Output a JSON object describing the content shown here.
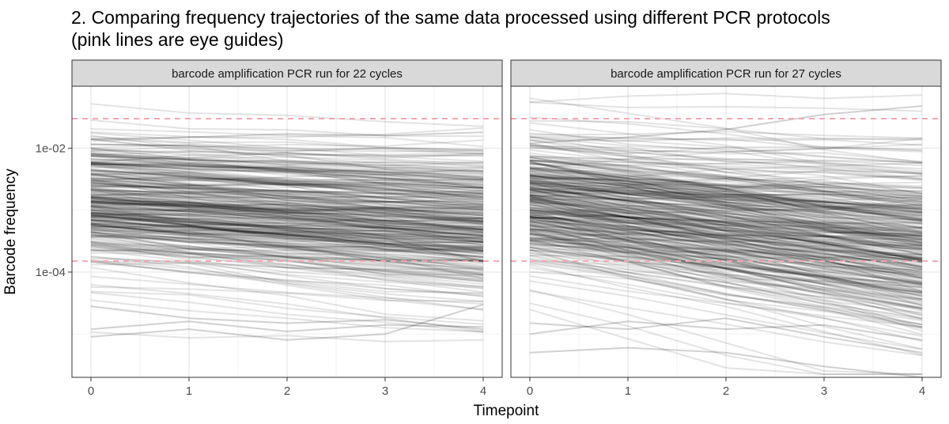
{
  "chart_data": {
    "type": "line",
    "title": "2. Comparing frequency trajectories of the same data processed using different PCR protocols\n(pink lines are eye guides)",
    "xlabel": "Timepoint",
    "ylabel": "Barcode frequency",
    "x": [
      0,
      1,
      2,
      3,
      4
    ],
    "x_tick_labels": [
      "0",
      "1",
      "2",
      "3",
      "4"
    ],
    "y_scale": "log10",
    "ylim": [
      2e-06,
      0.1
    ],
    "y_ticks": [
      0.0001,
      0.01
    ],
    "y_tick_labels": [
      "1e-04",
      "1e-02"
    ],
    "guide_lines": [
      0.03,
      0.00015
    ],
    "guide_color": "#f4a7b5",
    "line_color": "#000000",
    "panels": [
      {
        "label": "barcode amplification PCR run for 22 cycles",
        "n_trajectories": 320,
        "typical_start": 0.0015,
        "typical_end": 0.0006,
        "series": [
          {
            "name": "upper",
            "values": [
              0.014,
              0.015,
              0.017,
              0.016,
              0.018
            ]
          },
          {
            "name": "median",
            "values": [
              0.0016,
              0.0012,
              0.001,
              0.0009,
              0.0006
            ]
          },
          {
            "name": "lower-band",
            "values": [
              0.0007,
              0.0005,
              0.0004,
              0.00035,
              0.00015
            ]
          },
          {
            "name": "rare-1",
            "values": [
              2.8e-05,
              1.8e-05,
              1.5e-05,
              1.7e-05,
              1.2e-05
            ]
          },
          {
            "name": "rare-2",
            "values": [
              1.2e-05,
              1.6e-05,
              1.1e-05,
              1.4e-05,
              1.3e-05
            ]
          },
          {
            "name": "rare-3",
            "values": [
              9e-06,
              1.2e-05,
              8e-06,
              1e-05,
              3e-05
            ]
          }
        ]
      },
      {
        "label": "barcode amplification PCR run for 27 cycles",
        "n_trajectories": 340,
        "typical_start": 0.0015,
        "typical_end": 0.0003,
        "series": [
          {
            "name": "upper",
            "values": [
              0.012,
              0.015,
              0.02,
              0.035,
              0.048
            ]
          },
          {
            "name": "median",
            "values": [
              0.0016,
              0.0012,
              0.0009,
              0.0005,
              0.0003
            ]
          },
          {
            "name": "lower-band",
            "values": [
              0.0007,
              0.0005,
              0.0003,
              0.00015,
              8e-05
            ]
          },
          {
            "name": "rare-1",
            "values": [
              1.5e-05,
              1.2e-05,
              1.8e-05,
              9e-06,
              5e-06
            ]
          },
          {
            "name": "rare-2",
            "values": [
              1e-05,
              1.6e-05,
              1.2e-05,
              1.4e-05,
              8e-06
            ]
          },
          {
            "name": "rare-3",
            "values": [
              5e-06,
              6e-06,
              5e-06,
              3e-06,
              2e-06
            ]
          }
        ]
      }
    ]
  }
}
